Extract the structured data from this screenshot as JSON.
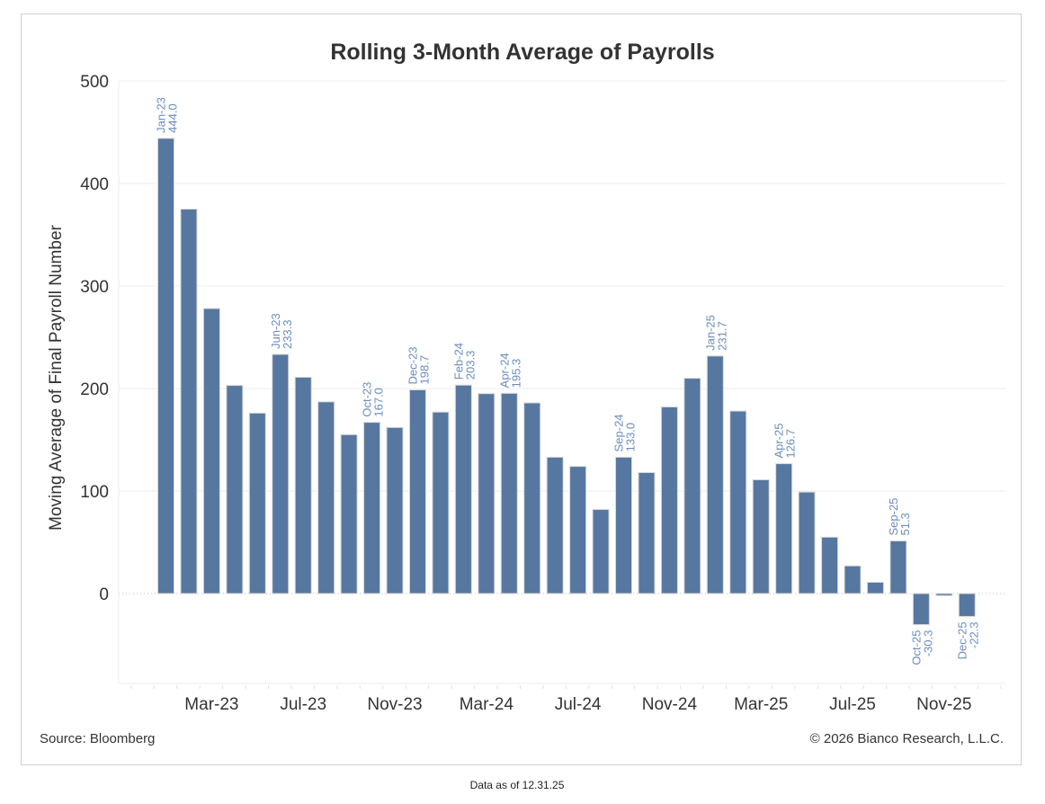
{
  "chart_data": {
    "type": "bar",
    "title": "Rolling 3-Month Average of Payrolls",
    "xlabel": "",
    "ylabel": "Moving Average of Final Payroll Number",
    "ylim": [
      -90,
      510
    ],
    "yticks": [
      0,
      100,
      200,
      300,
      400,
      500
    ],
    "xtick_labels": [
      "Mar-23",
      "Jul-23",
      "Nov-23",
      "Mar-24",
      "Jul-24",
      "Nov-24",
      "Mar-25",
      "Jul-25",
      "Nov-25"
    ],
    "grid": true,
    "bar_color": "#5677a0",
    "label_color": "#6a8cbf",
    "categories": [
      "Jan-23",
      "Feb-23",
      "Mar-23",
      "Apr-23",
      "May-23",
      "Jun-23",
      "Jul-23",
      "Aug-23",
      "Sep-23",
      "Oct-23",
      "Nov-23",
      "Dec-23",
      "Jan-24",
      "Feb-24",
      "Mar-24",
      "Apr-24",
      "May-24",
      "Jun-24",
      "Jul-24",
      "Aug-24",
      "Sep-24",
      "Oct-24",
      "Nov-24",
      "Dec-24",
      "Jan-25",
      "Feb-25",
      "Mar-25",
      "Apr-25",
      "May-25",
      "Jun-25",
      "Jul-25",
      "Aug-25",
      "Sep-25",
      "Oct-25",
      "Nov-25",
      "Dec-25"
    ],
    "values": [
      444.0,
      375,
      278,
      203,
      176,
      233.3,
      211,
      187,
      155,
      167.0,
      162,
      198.7,
      177,
      203.3,
      195,
      195.3,
      186,
      133,
      124,
      82,
      133.0,
      118,
      182,
      210,
      231.7,
      178,
      111,
      126.7,
      99,
      55,
      27,
      11,
      51.3,
      -30.3,
      -2,
      -22.3
    ],
    "annotations": [
      {
        "category": "Jan-23",
        "label": "Jan-23",
        "value_text": "444.0"
      },
      {
        "category": "Jun-23",
        "label": "Jun-23",
        "value_text": "233.3"
      },
      {
        "category": "Oct-23",
        "label": "Oct-23",
        "value_text": "167.0"
      },
      {
        "category": "Dec-23",
        "label": "Dec-23",
        "value_text": "198.7"
      },
      {
        "category": "Feb-24",
        "label": "Feb-24",
        "value_text": "203.3"
      },
      {
        "category": "Apr-24",
        "label": "Apr-24",
        "value_text": "195.3"
      },
      {
        "category": "Sep-24",
        "label": "Sep-24",
        "value_text": "133.0"
      },
      {
        "category": "Jan-25",
        "label": "Jan-25",
        "value_text": "231.7"
      },
      {
        "category": "Apr-25",
        "label": "Apr-25",
        "value_text": "126.7"
      },
      {
        "category": "Sep-25",
        "label": "Sep-25",
        "value_text": "51.3"
      },
      {
        "category": "Oct-25",
        "label": "Oct-25",
        "value_text": "-30.3"
      },
      {
        "category": "Dec-25",
        "label": "Dec-25",
        "value_text": "-22.3"
      }
    ]
  },
  "footer": {
    "source": "Source: Bloomberg",
    "copyright": "© 2026 Bianco Research, L.L.C.",
    "as_of": "Data as of 12.31.25"
  }
}
